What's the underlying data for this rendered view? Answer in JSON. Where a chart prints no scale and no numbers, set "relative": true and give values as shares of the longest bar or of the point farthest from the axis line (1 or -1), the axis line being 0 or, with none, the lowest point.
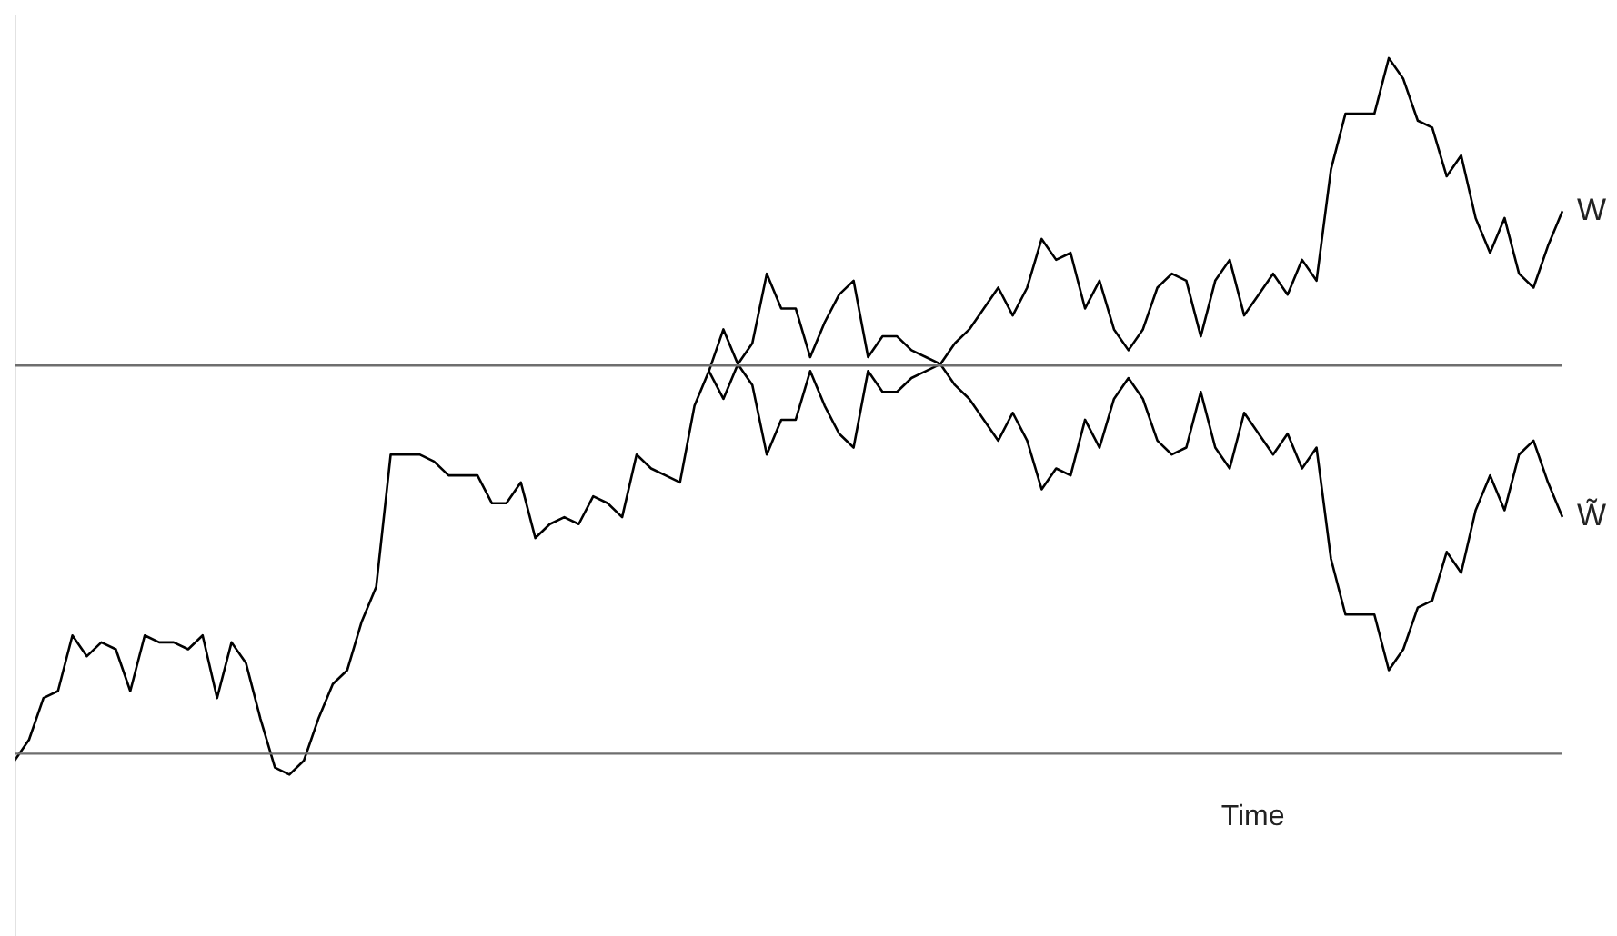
{
  "chart_data": {
    "type": "line",
    "relative": true,
    "xlabel": "Time",
    "legend": false,
    "marker": "none",
    "line_style": "solid",
    "categories": [
      null,
      null,
      null,
      null,
      null,
      null,
      null,
      null,
      null,
      null,
      null,
      null,
      null,
      null,
      null,
      null,
      null,
      null,
      null,
      null,
      null,
      null,
      null,
      null,
      null,
      null,
      null,
      null,
      null,
      null,
      null,
      null,
      null,
      null,
      null,
      null,
      null,
      null,
      null,
      null,
      null,
      null,
      null,
      null,
      null,
      null,
      null,
      null,
      null,
      null,
      null,
      null,
      null,
      null,
      null,
      null,
      null,
      null,
      null,
      null,
      null,
      null,
      null,
      null,
      null,
      null,
      null,
      null,
      null,
      null,
      null,
      null,
      null,
      null,
      null,
      null,
      null,
      null,
      null,
      null,
      null,
      null,
      null,
      null,
      null,
      null,
      null,
      null,
      null,
      null,
      null,
      null,
      null,
      null,
      null,
      null,
      null,
      null,
      null,
      null,
      null,
      null,
      null,
      null,
      null,
      null,
      null,
      null
    ],
    "ref_lines": [
      {
        "axis": "y",
        "value": 0.558,
        "color": "#6e6e6e"
      }
    ],
    "series": [
      {
        "name": "W",
        "color": "#000000",
        "values": [
          -0.01,
          0.02,
          0.08,
          0.09,
          0.17,
          0.14,
          0.16,
          0.15,
          0.09,
          0.17,
          0.16,
          0.16,
          0.15,
          0.17,
          0.08,
          0.16,
          0.13,
          0.05,
          -0.02,
          -0.03,
          -0.01,
          0.05,
          0.1,
          0.12,
          0.19,
          0.24,
          0.43,
          0.43,
          0.43,
          0.42,
          0.4,
          0.4,
          0.4,
          0.36,
          0.36,
          0.39,
          0.31,
          0.33,
          0.34,
          0.33,
          0.37,
          0.36,
          0.34,
          0.43,
          0.41,
          0.4,
          0.39,
          0.5,
          0.55,
          0.61,
          0.56,
          0.59,
          0.69,
          0.64,
          0.64,
          0.57,
          0.62,
          0.66,
          0.68,
          0.57,
          0.6,
          0.6,
          0.58,
          0.57,
          0.56,
          0.59,
          0.61,
          0.64,
          0.67,
          0.63,
          0.67,
          0.74,
          0.71,
          0.72,
          0.64,
          0.68,
          0.61,
          0.58,
          0.61,
          0.67,
          0.69,
          0.68,
          0.6,
          0.68,
          0.71,
          0.63,
          0.66,
          0.69,
          0.66,
          0.71,
          0.68,
          0.84,
          0.92,
          0.92,
          0.92,
          1.0,
          0.97,
          0.91,
          0.9,
          0.83,
          0.86,
          0.77,
          0.72,
          0.77,
          0.69,
          0.67,
          0.73,
          0.78
        ]
      },
      {
        "name": "W̃",
        "color": "#000000",
        "values": [
          null,
          null,
          null,
          null,
          null,
          null,
          null,
          null,
          null,
          null,
          null,
          null,
          null,
          null,
          null,
          null,
          null,
          null,
          null,
          null,
          null,
          null,
          null,
          null,
          null,
          null,
          null,
          null,
          null,
          null,
          null,
          null,
          null,
          null,
          null,
          null,
          null,
          null,
          null,
          null,
          null,
          null,
          null,
          null,
          null,
          null,
          null,
          null,
          0.55,
          0.51,
          0.56,
          0.53,
          0.43,
          0.48,
          0.48,
          0.55,
          0.5,
          0.46,
          0.44,
          0.55,
          0.52,
          0.52,
          0.54,
          0.55,
          0.56,
          0.53,
          0.51,
          0.48,
          0.45,
          0.49,
          0.45,
          0.38,
          0.41,
          0.4,
          0.48,
          0.44,
          0.51,
          0.54,
          0.51,
          0.45,
          0.43,
          0.44,
          0.52,
          0.44,
          0.41,
          0.49,
          0.46,
          0.43,
          0.46,
          0.41,
          0.44,
          0.28,
          0.2,
          0.2,
          0.2,
          0.12,
          0.15,
          0.21,
          0.22,
          0.29,
          0.26,
          0.35,
          0.4,
          0.35,
          0.43,
          0.45,
          0.39,
          0.34
        ]
      }
    ]
  }
}
